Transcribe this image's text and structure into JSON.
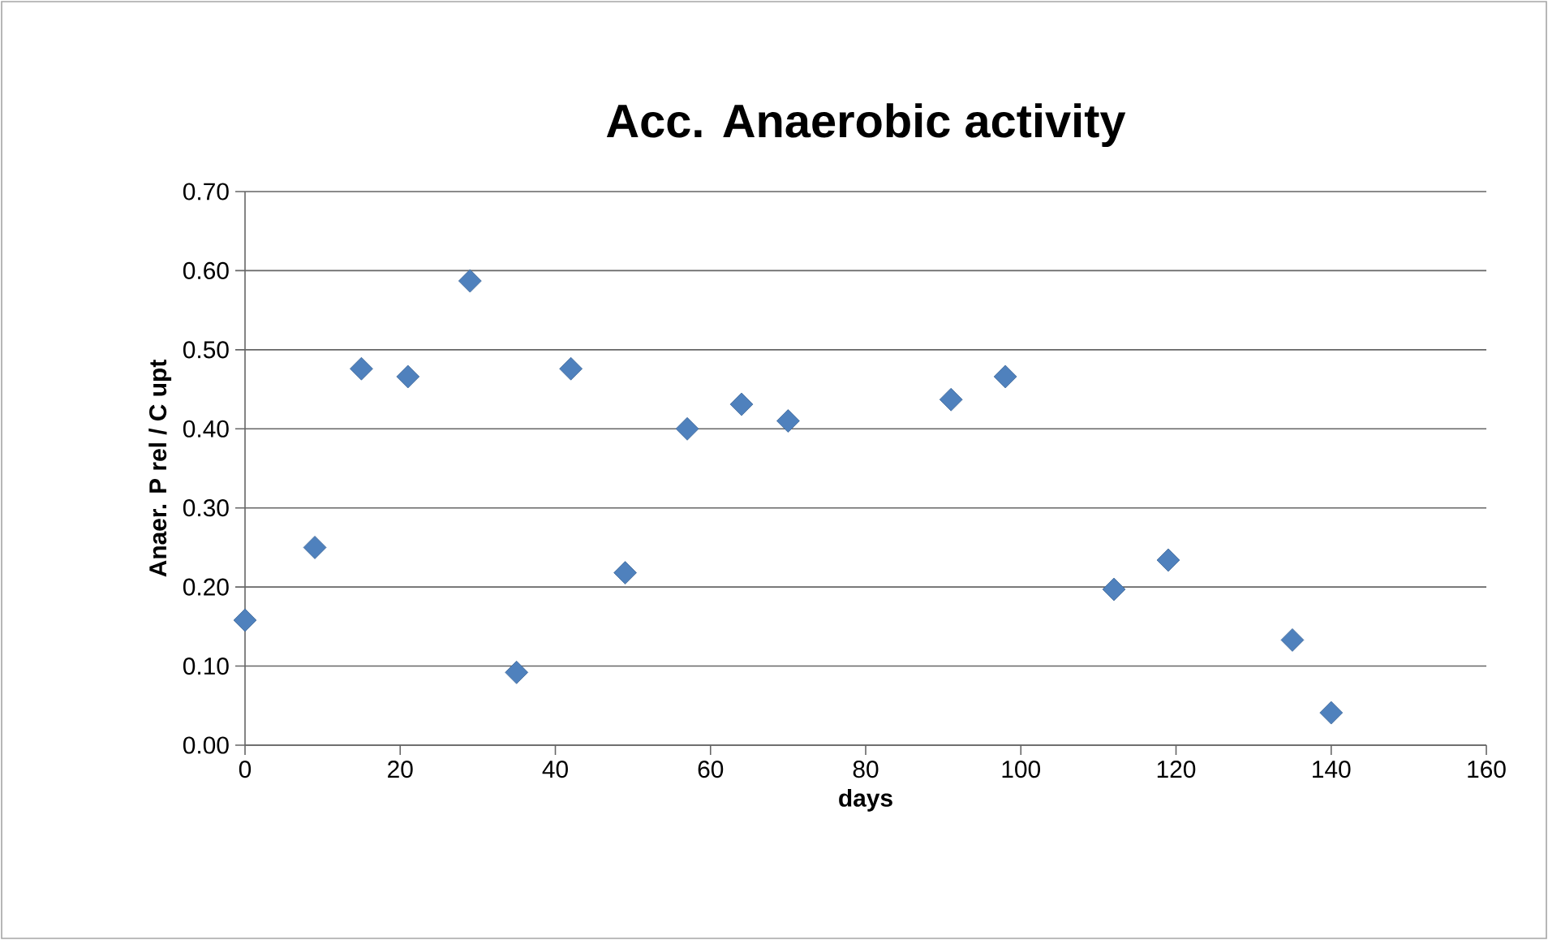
{
  "chart_data": {
    "type": "scatter",
    "title": "Acc. Anaerobic activity",
    "xlabel": "days",
    "ylabel": "Anaer. P rel / C upt",
    "x": [
      0,
      9,
      15,
      21,
      29,
      35,
      42,
      49,
      57,
      64,
      70,
      91,
      98,
      112,
      119,
      135,
      140
    ],
    "series": [
      {
        "color": "#4f81bd",
        "values": [
          0.158,
          0.25,
          0.476,
          0.466,
          0.587,
          0.092,
          0.476,
          0.218,
          0.4,
          0.431,
          0.41,
          0.437,
          0.466,
          0.197,
          0.234,
          0.133,
          0.041
        ]
      }
    ],
    "xlim": [
      0,
      160
    ],
    "xticks": [
      0,
      20,
      40,
      60,
      80,
      100,
      120,
      140,
      160
    ],
    "ylim": [
      0,
      0.7
    ],
    "yticks": [
      {
        "value": 0,
        "label": "0.00"
      },
      {
        "value": 0.1,
        "label": "0.10"
      },
      {
        "value": 0.2,
        "label": "0.20"
      },
      {
        "value": 0.3,
        "label": "0.30"
      },
      {
        "value": 0.4,
        "label": "0.40"
      },
      {
        "value": 0.5,
        "label": "0.50"
      },
      {
        "value": 0.6,
        "label": "0.60"
      },
      {
        "value": 0.7,
        "label": "0.70"
      }
    ],
    "grid": "y",
    "marker": "diamond"
  }
}
